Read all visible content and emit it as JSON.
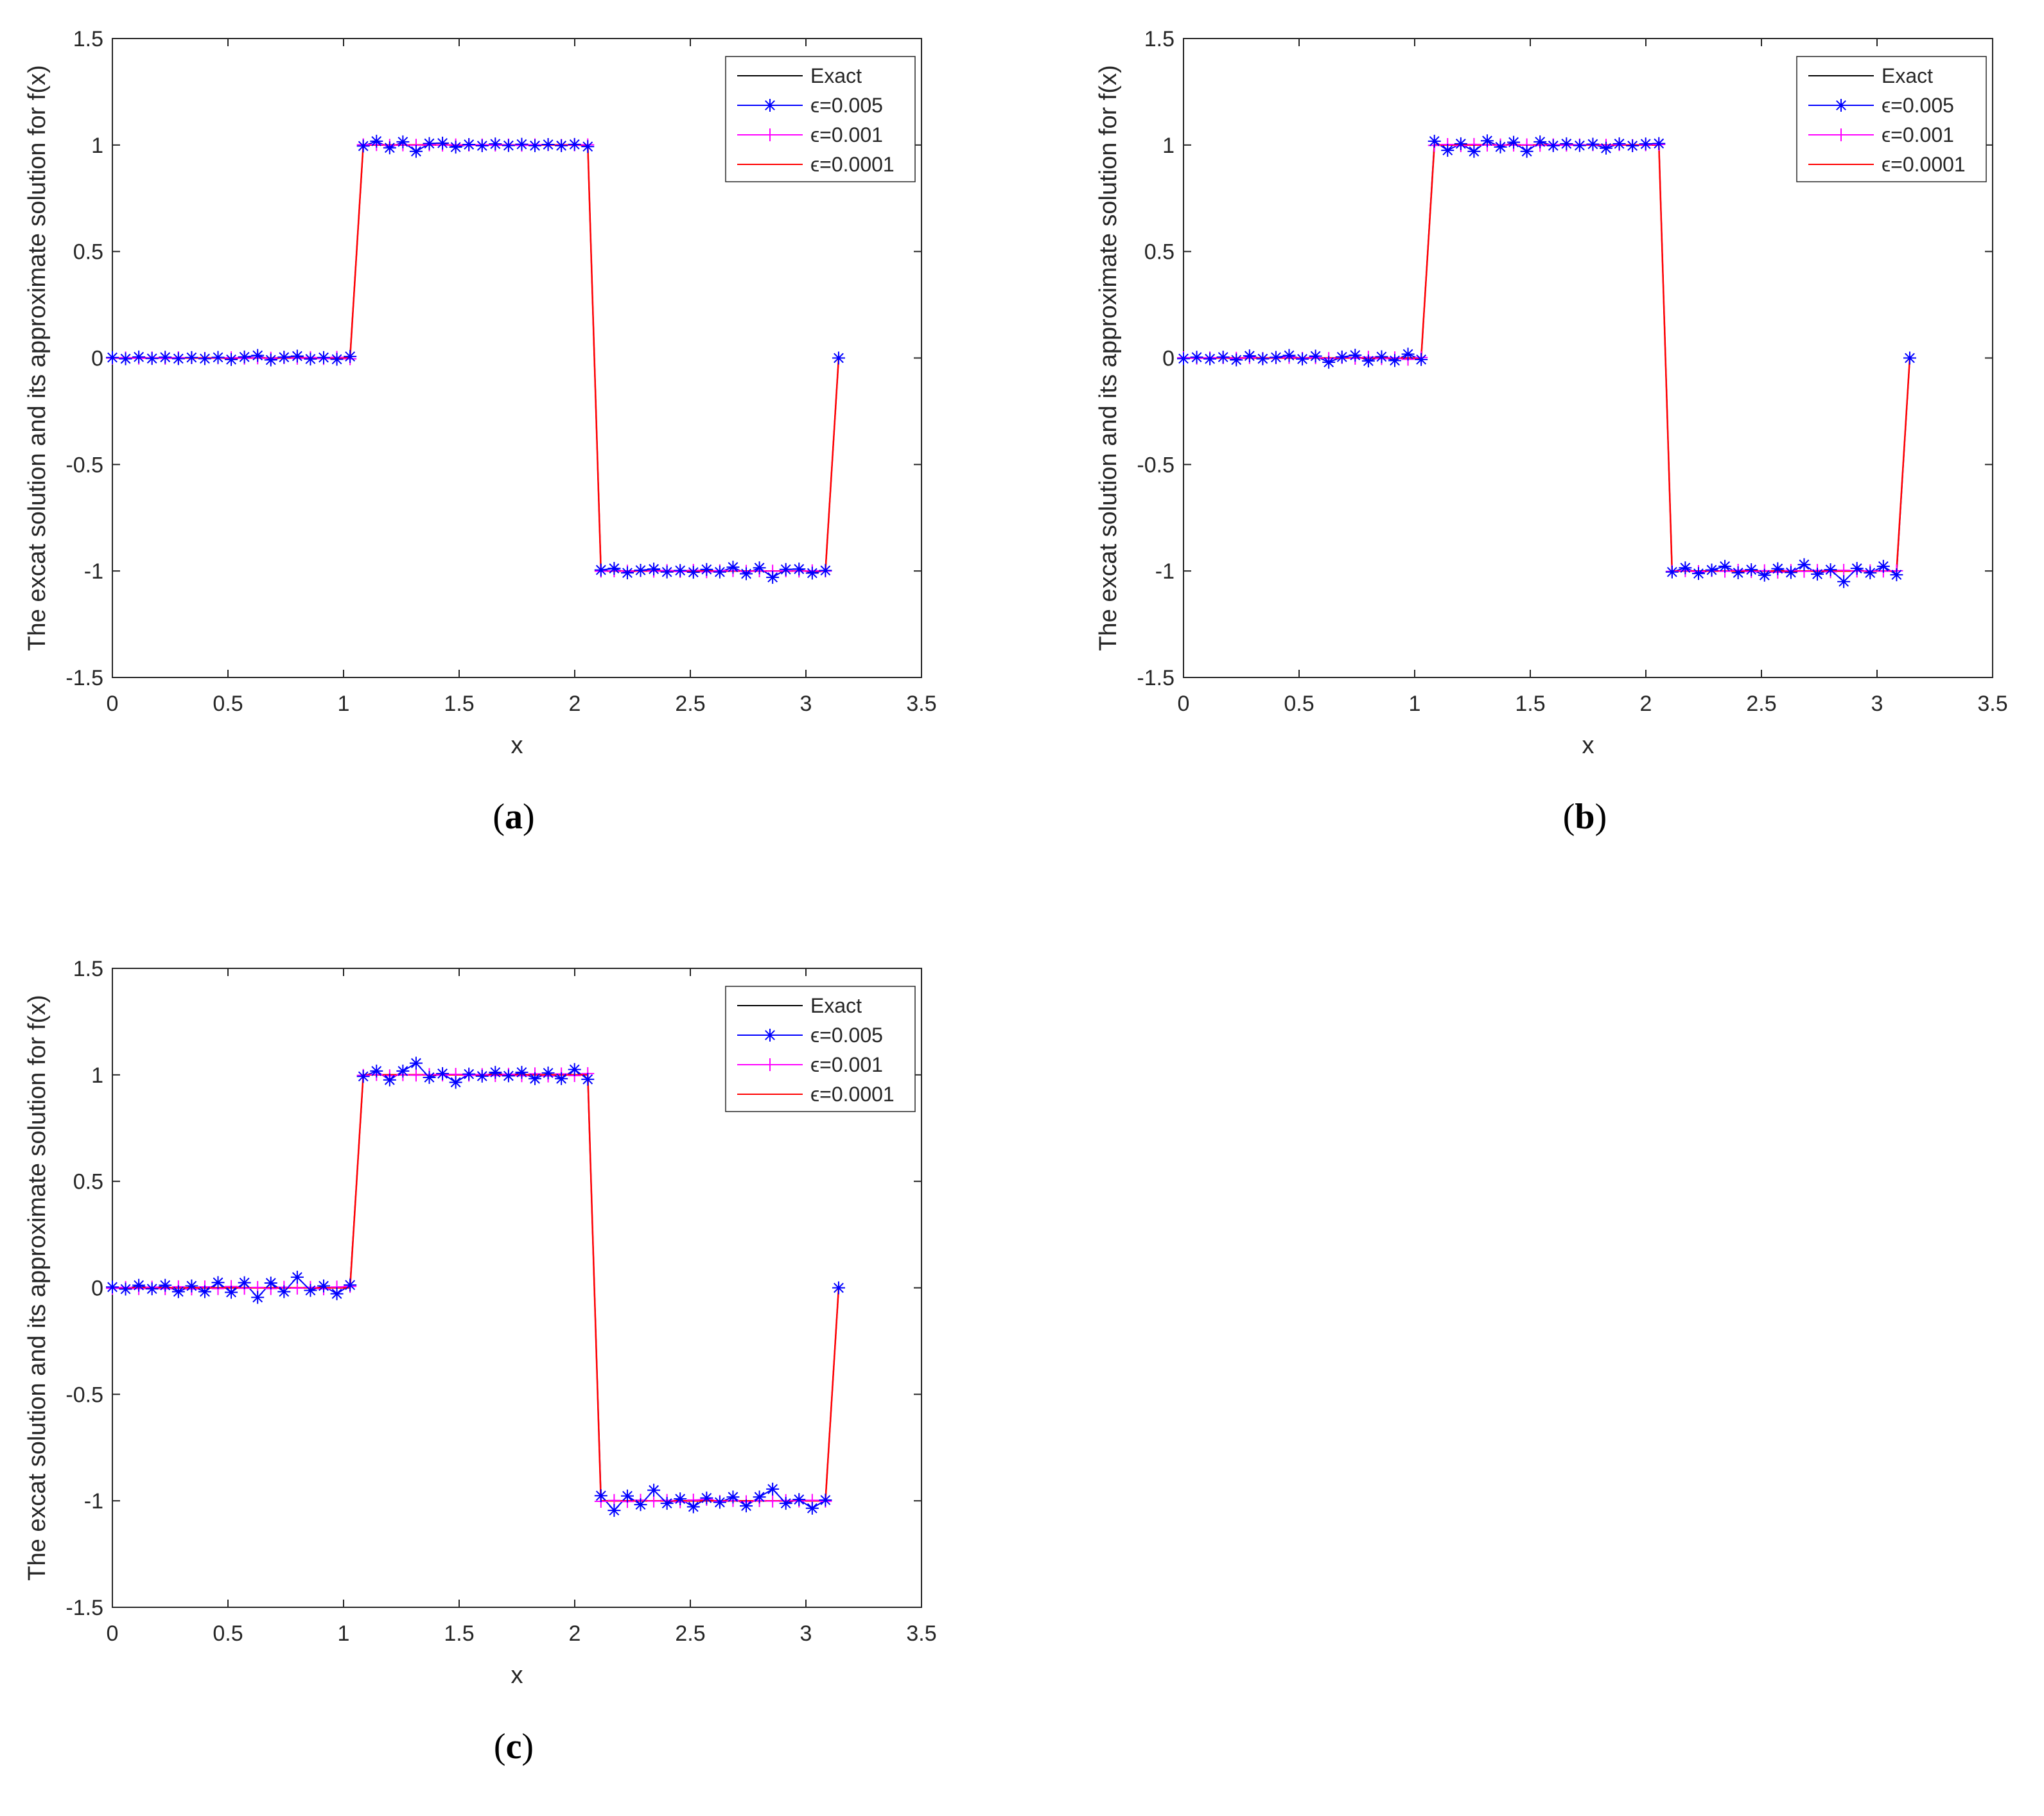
{
  "chart_data": [
    {
      "type": "line",
      "panel_label": "a",
      "xlabel": "x",
      "ylabel": "The excat solution and its approximate solution for f(x)",
      "xlim": [
        0,
        3.5
      ],
      "ylim": [
        -1.5,
        1.5
      ],
      "xticks": [
        0,
        0.5,
        1,
        1.5,
        2,
        2.5,
        3,
        3.5
      ],
      "xtick_labels": [
        "0",
        "0.5",
        "1",
        "1.5",
        "2",
        "2.5",
        "3",
        "3.5"
      ],
      "yticks": [
        -1.5,
        -1,
        -0.5,
        0,
        0.5,
        1,
        1.5
      ],
      "ytick_labels": [
        "-1.5",
        "-1",
        "-0.5",
        "0",
        "0.5",
        "1",
        "1.5"
      ],
      "legend_position": "top-right",
      "series": [
        {
          "name": "Exact",
          "color": "#000000",
          "marker": "none"
        },
        {
          "name": "ϵ=0.005",
          "color": "#0000ff",
          "marker": "asterisk",
          "noise": [
            0.004,
            -0.006,
            0.005,
            -0.004,
            0.006,
            -0.003,
            0.004,
            -0.005,
            0.003,
            -0.012,
            0.008,
            0.012,
            -0.015,
            0.006,
            0.009,
            -0.008,
            0.004,
            -0.006,
            0.012,
            -0.008,
            0.018,
            -0.022,
            0.025,
            -0.03,
            0.012,
            0.015,
            -0.01
          ]
        },
        {
          "name": "ϵ=0.001",
          "color": "#ff00ff",
          "marker": "plus"
        },
        {
          "name": "ϵ=0.0001",
          "color": "#ff0000",
          "marker": "none"
        }
      ]
    },
    {
      "type": "line",
      "panel_label": "b",
      "xlabel": "x",
      "ylabel": "The excat solution and its approximate solution for f(x)",
      "xlim": [
        0,
        3.5
      ],
      "ylim": [
        -1.5,
        1.5
      ],
      "xticks": [
        0,
        0.5,
        1,
        1.5,
        2,
        2.5,
        3,
        3.5
      ],
      "xtick_labels": [
        "0",
        "0.5",
        "1",
        "1.5",
        "2",
        "2.5",
        "3",
        "3.5"
      ],
      "yticks": [
        -1.5,
        -1,
        -0.5,
        0,
        0.5,
        1,
        1.5
      ],
      "ytick_labels": [
        "-1.5",
        "-1",
        "-0.5",
        "0",
        "0.5",
        "1",
        "1.5"
      ],
      "legend_position": "top-right",
      "series": [
        {
          "name": "Exact",
          "color": "#000000",
          "marker": "none"
        },
        {
          "name": "ϵ=0.005",
          "color": "#0000ff",
          "marker": "asterisk",
          "noise": [
            -0.005,
            0.006,
            -0.004,
            0.007,
            -0.015,
            0.01,
            -0.006,
            0.005,
            0.012,
            -0.008,
            0.015,
            -0.02,
            0.008,
            0.022,
            -0.014,
            0.01,
            -0.02,
            0.018,
            -0.012,
            0.03,
            -0.025,
            0.01,
            -0.05,
            0.02,
            -0.015,
            0.022,
            -0.03,
            0.025
          ]
        },
        {
          "name": "ϵ=0.001",
          "color": "#ff00ff",
          "marker": "plus"
        },
        {
          "name": "ϵ=0.0001",
          "color": "#ff0000",
          "marker": "none"
        }
      ]
    },
    {
      "type": "line",
      "panel_label": "c",
      "xlabel": "x",
      "ylabel": "The excat solution and its approximate solution for f(x)",
      "xlim": [
        0,
        3.5
      ],
      "ylim": [
        -1.5,
        1.5
      ],
      "xticks": [
        0,
        0.5,
        1,
        1.5,
        2,
        2.5,
        3,
        3.5
      ],
      "xtick_labels": [
        "0",
        "0.5",
        "1",
        "1.5",
        "2",
        "2.5",
        "3",
        "3.5"
      ],
      "yticks": [
        -1.5,
        -1,
        -0.5,
        0,
        0.5,
        1,
        1.5
      ],
      "ytick_labels": [
        "-1.5",
        "-1",
        "-0.5",
        "0",
        "0.5",
        "1",
        "1.5"
      ],
      "legend_position": "top-right",
      "series": [
        {
          "name": "Exact",
          "color": "#000000",
          "marker": "none"
        },
        {
          "name": "ϵ=0.005",
          "color": "#0000ff",
          "marker": "asterisk",
          "noise": [
            0.006,
            -0.01,
            0.012,
            -0.008,
            0.02,
            -0.018,
            0.015,
            -0.03,
            0.025,
            -0.035,
            0.04,
            -0.045,
            0.038,
            -0.03,
            0.05,
            -0.02,
            0.015,
            -0.028,
            0.022,
            -0.012,
            0.018,
            -0.04,
            0.03,
            0.055,
            -0.02,
            0.01,
            -0.035
          ]
        },
        {
          "name": "ϵ=0.001",
          "color": "#ff00ff",
          "marker": "plus"
        },
        {
          "name": "ϵ=0.0001",
          "color": "#ff0000",
          "marker": "none"
        }
      ]
    }
  ]
}
